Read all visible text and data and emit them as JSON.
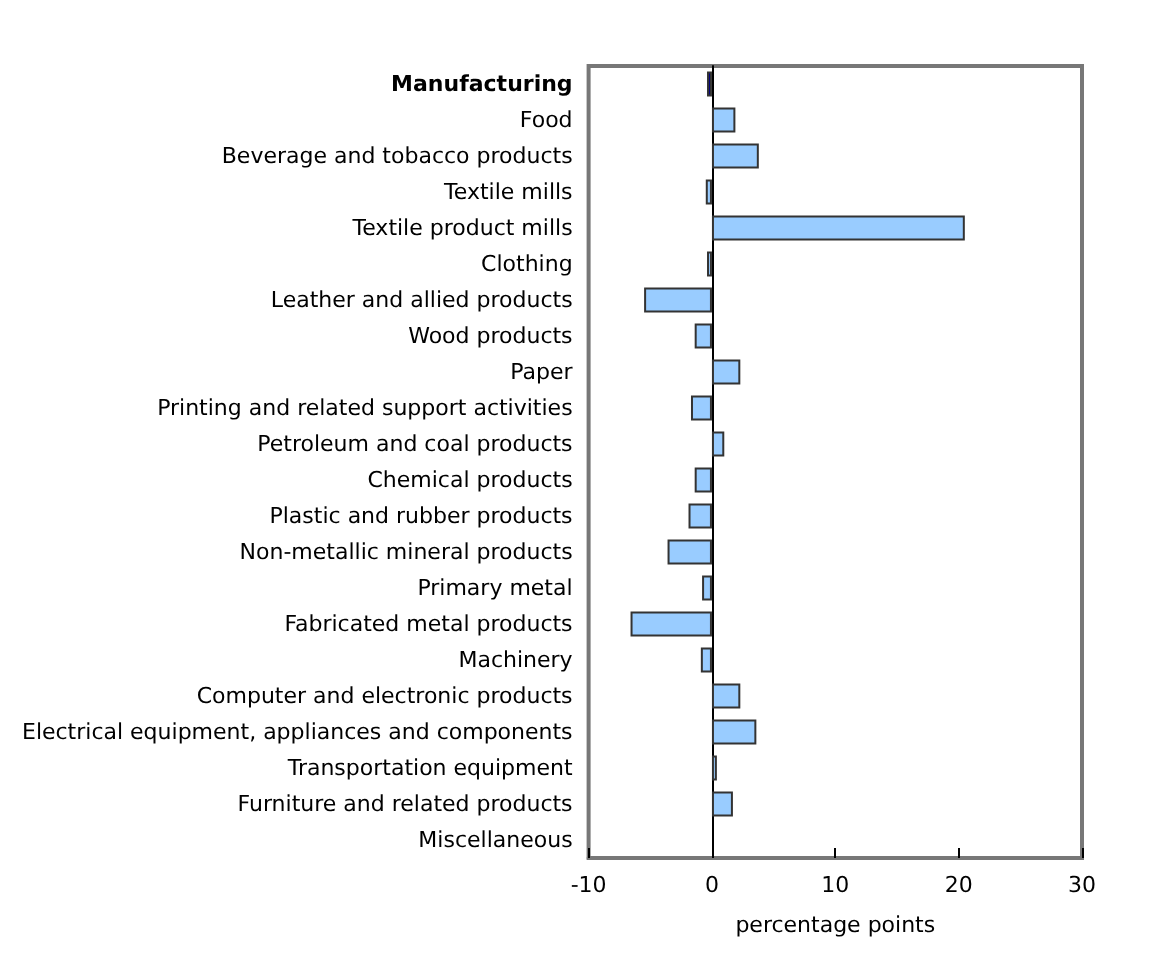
{
  "chart_data": {
    "type": "bar",
    "orientation": "horizontal",
    "xlabel": "percentage points",
    "categories": [
      "Manufacturing",
      "Food",
      "Beverage and tobacco products",
      "Textile mills",
      "Textile product mills",
      "Clothing",
      "Leather and allied products",
      "Wood products",
      "Paper",
      "Printing and related support activities",
      "Petroleum and coal products",
      "Chemical products",
      "Plastic and rubber products",
      "Non-metallic mineral products",
      "Primary metal",
      "Fabricated metal products",
      "Machinery",
      "Computer and electronic products",
      "Electrical equipment, appliances and components",
      "Transportation equipment",
      "Furniture and related products",
      "Miscellaneous"
    ],
    "values": [
      -0.4,
      1.9,
      3.8,
      -0.5,
      20.5,
      -0.4,
      -5.5,
      -1.4,
      2.3,
      -1.7,
      1.0,
      -1.4,
      -1.9,
      -3.6,
      -0.8,
      -6.6,
      -0.9,
      2.3,
      3.6,
      0.4,
      1.7,
      null
    ],
    "colors": [
      "#000080",
      "#99ccff",
      "#99ccff",
      "#99ccff",
      "#99ccff",
      "#99ccff",
      "#99ccff",
      "#99ccff",
      "#99ccff",
      "#99ccff",
      "#99ccff",
      "#99ccff",
      "#99ccff",
      "#99ccff",
      "#99ccff",
      "#99ccff",
      "#99ccff",
      "#99ccff",
      "#99ccff",
      "#99ccff",
      "#99ccff",
      null
    ],
    "xlim": [
      -10,
      30
    ],
    "xticks": [
      -10,
      0,
      10,
      20,
      30
    ]
  }
}
